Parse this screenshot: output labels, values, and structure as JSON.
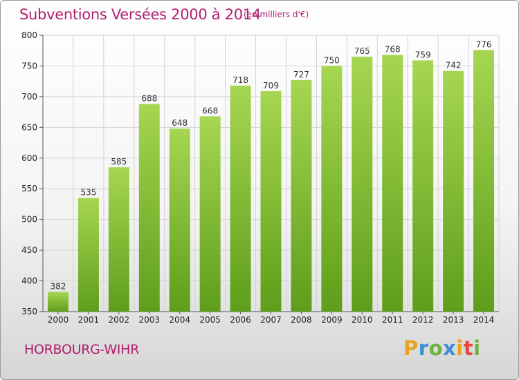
{
  "header": {
    "title": "Subventions Versées 2000 à 2014",
    "unit_note": "(en milliers d'€)"
  },
  "footer": {
    "town": "HORBOURG-WIHR",
    "logo_letters": [
      {
        "char": "P",
        "color": "#e8a320"
      },
      {
        "char": "r",
        "color": "#3a8fd6"
      },
      {
        "char": "o",
        "color": "#6cb33f"
      },
      {
        "char": "x",
        "color": "#3a8fd6"
      },
      {
        "char": "i",
        "color": "#e8a320"
      },
      {
        "char": "t",
        "color": "#e84a3c"
      },
      {
        "char": "i",
        "color": "#6cb33f"
      }
    ]
  },
  "colors": {
    "bar_top": "#a6d652",
    "bar_bottom": "#5e9e1a",
    "grid": "#d2d2d2"
  },
  "chart_data": {
    "type": "bar",
    "categories": [
      "2000",
      "2001",
      "2002",
      "2003",
      "2004",
      "2005",
      "2006",
      "2007",
      "2008",
      "2009",
      "2010",
      "2011",
      "2012",
      "2013",
      "2014"
    ],
    "values": [
      382,
      535,
      585,
      688,
      648,
      668,
      718,
      709,
      727,
      750,
      765,
      768,
      759,
      742,
      776
    ],
    "y_ticks": [
      350,
      400,
      450,
      500,
      550,
      600,
      650,
      700,
      750,
      800
    ],
    "ylim": [
      350,
      800
    ],
    "grid": true,
    "title": "Subventions Versées 2000 à 2014",
    "ylabel": "(en milliers d'€)"
  }
}
